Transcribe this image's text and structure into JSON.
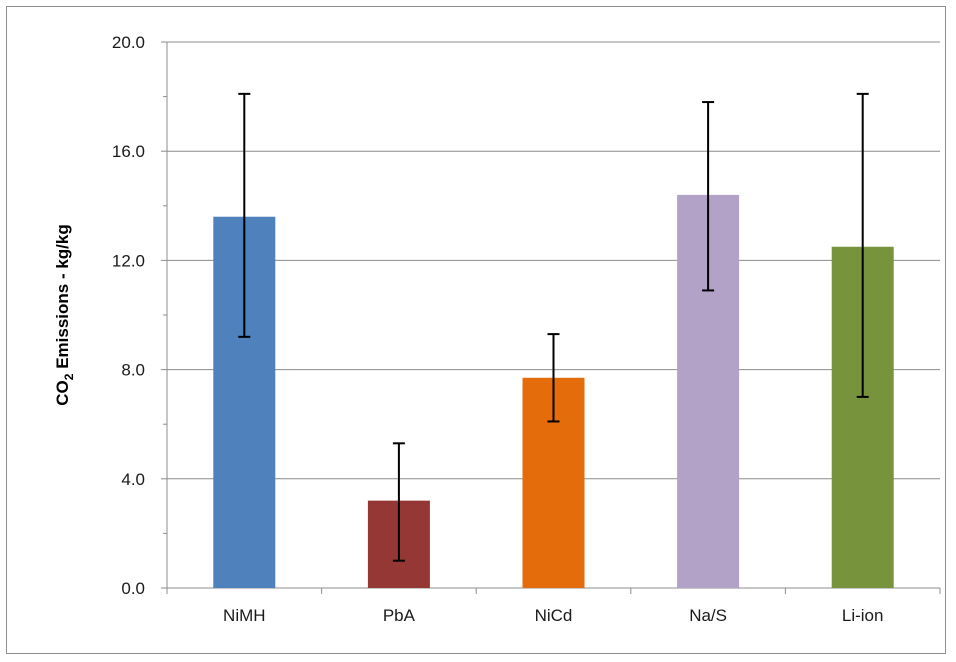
{
  "chart_data": {
    "type": "bar",
    "title": "",
    "xlabel": "",
    "ylabel": "CO2 Emissions - kg/kg",
    "ylabel_parts": {
      "main": "CO",
      "sub": "2",
      "rest": " Emissions - kg/kg"
    },
    "ylim": [
      0,
      20
    ],
    "yticks": [
      0,
      4,
      8,
      12,
      16,
      20
    ],
    "ytick_labels": [
      "0.0",
      "4.0",
      "8.0",
      "12.0",
      "16.0",
      "20.0"
    ],
    "grid": true,
    "legend": "none",
    "categories": [
      "NiMH",
      "PbA",
      "NiCd",
      "Na/S",
      "Li-ion"
    ],
    "values": [
      13.6,
      3.2,
      7.7,
      14.4,
      12.5
    ],
    "error_low": [
      9.2,
      1.0,
      6.1,
      10.9,
      7.0
    ],
    "error_high": [
      18.1,
      5.3,
      9.3,
      17.8,
      18.1
    ],
    "colors": [
      "#4f81bd",
      "#953735",
      "#e46c0a",
      "#b2a2c7",
      "#77933c"
    ]
  }
}
